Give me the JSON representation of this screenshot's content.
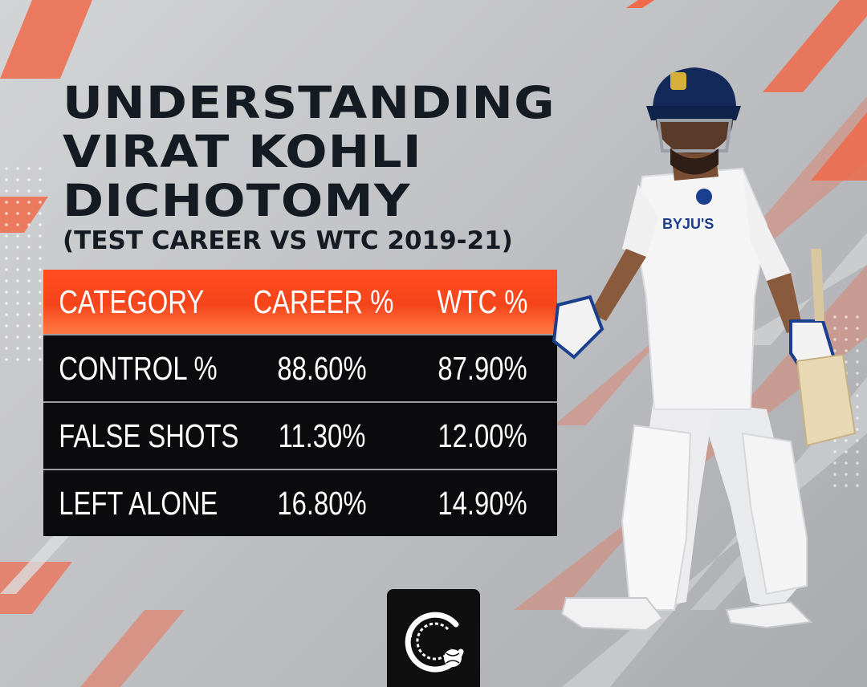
{
  "title": {
    "lines": [
      "UNDERSTANDING",
      "VIRAT KOHLI",
      "DICHOTOMY"
    ],
    "subtitle": "(TEST CAREER VS WTC 2019-21)"
  },
  "table": {
    "headers": [
      "CATEGORY",
      "CAREER %",
      "WTC %"
    ],
    "rows": [
      [
        "CONTROL %",
        "88.60%",
        "87.90%"
      ],
      [
        "FALSE SHOTS",
        "11.30%",
        "12.00%"
      ],
      [
        "LEFT ALONE",
        "16.80%",
        "14.90%"
      ]
    ]
  },
  "colors": {
    "accent": "#f5441a",
    "title": "#141b22",
    "table_bg": "#0b0b0d",
    "background": "#c0c1c4"
  },
  "icons": {
    "logo": "cricket-ball-logo-icon"
  }
}
